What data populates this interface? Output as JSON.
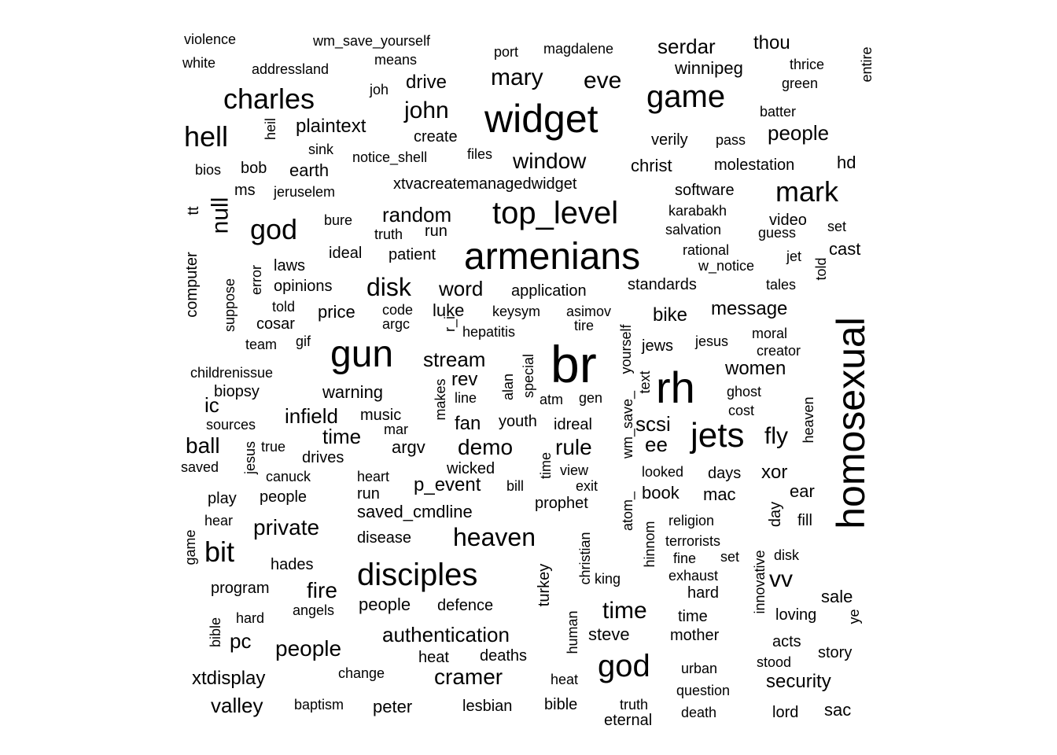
{
  "words": [
    {
      "text": "violence",
      "weight": 18
    },
    {
      "text": "wm_save_yourself",
      "weight": 18
    },
    {
      "text": "port",
      "weight": 18
    },
    {
      "text": "magdalene",
      "weight": 18
    },
    {
      "text": "serdar",
      "weight": 26
    },
    {
      "text": "thou",
      "weight": 24
    },
    {
      "text": "entire",
      "weight": 18
    },
    {
      "text": "white",
      "weight": 18
    },
    {
      "text": "addressland",
      "weight": 18
    },
    {
      "text": "means",
      "weight": 18
    },
    {
      "text": "winnipeg",
      "weight": 22
    },
    {
      "text": "thrice",
      "weight": 18
    },
    {
      "text": "green",
      "weight": 18
    },
    {
      "text": "mary",
      "weight": 30
    },
    {
      "text": "eve",
      "weight": 30
    },
    {
      "text": "charles",
      "weight": 36
    },
    {
      "text": "joh",
      "weight": 18
    },
    {
      "text": "drive",
      "weight": 24
    },
    {
      "text": "game",
      "weight": 40
    },
    {
      "text": "widget",
      "weight": 50
    },
    {
      "text": "batter",
      "weight": 18
    },
    {
      "text": "john",
      "weight": 30
    },
    {
      "text": "hell",
      "weight": 36
    },
    {
      "text": "heil",
      "weight": 18
    },
    {
      "text": "plaintext",
      "weight": 24
    },
    {
      "text": "create",
      "weight": 20
    },
    {
      "text": "verily",
      "weight": 20
    },
    {
      "text": "pass",
      "weight": 18
    },
    {
      "text": "people",
      "weight": 26
    },
    {
      "text": "sink",
      "weight": 18
    },
    {
      "text": "notice_shell",
      "weight": 18
    },
    {
      "text": "files",
      "weight": 18
    },
    {
      "text": "window",
      "weight": 28
    },
    {
      "text": "bios",
      "weight": 18
    },
    {
      "text": "bob",
      "weight": 20
    },
    {
      "text": "earth",
      "weight": 22
    },
    {
      "text": "christ",
      "weight": 22
    },
    {
      "text": "molestation",
      "weight": 20
    },
    {
      "text": "hd",
      "weight": 22
    },
    {
      "text": "null",
      "weight": 30
    },
    {
      "text": "ms",
      "weight": 20
    },
    {
      "text": "jeruselem",
      "weight": 18
    },
    {
      "text": "xtvacreatemanagedwidget",
      "weight": 20
    },
    {
      "text": "software",
      "weight": 20
    },
    {
      "text": "mark",
      "weight": 36
    },
    {
      "text": "computer",
      "weight": 20
    },
    {
      "text": "tt",
      "weight": 20
    },
    {
      "text": "god",
      "weight": 36
    },
    {
      "text": "bure",
      "weight": 18
    },
    {
      "text": "random",
      "weight": 26
    },
    {
      "text": "top_level",
      "weight": 40
    },
    {
      "text": "karabakh",
      "weight": 18
    },
    {
      "text": "video",
      "weight": 20
    },
    {
      "text": "set",
      "weight": 18
    },
    {
      "text": "truth",
      "weight": 18
    },
    {
      "text": "run",
      "weight": 20
    },
    {
      "text": "salvation",
      "weight": 18
    },
    {
      "text": "guess",
      "weight": 18
    },
    {
      "text": "armenians",
      "weight": 48
    },
    {
      "text": "ideal",
      "weight": 20
    },
    {
      "text": "patient",
      "weight": 20
    },
    {
      "text": "rational",
      "weight": 18
    },
    {
      "text": "jet",
      "weight": 18
    },
    {
      "text": "told",
      "weight": 18
    },
    {
      "text": "cast",
      "weight": 22
    },
    {
      "text": "error",
      "weight": 18
    },
    {
      "text": "laws",
      "weight": 20
    },
    {
      "text": "w_notice",
      "weight": 18
    },
    {
      "text": "suppose",
      "weight": 18
    },
    {
      "text": "opinions",
      "weight": 20
    },
    {
      "text": "disk",
      "weight": 32
    },
    {
      "text": "word",
      "weight": 26
    },
    {
      "text": "application",
      "weight": 20
    },
    {
      "text": "standards",
      "weight": 20
    },
    {
      "text": "tales",
      "weight": 18
    },
    {
      "text": "homosexual",
      "weight": 50
    },
    {
      "text": "told",
      "weight": 18
    },
    {
      "text": "code",
      "weight": 18
    },
    {
      "text": "luke",
      "weight": 22
    },
    {
      "text": "keysym",
      "weight": 18
    },
    {
      "text": "asimov",
      "weight": 18
    },
    {
      "text": "message",
      "weight": 24
    },
    {
      "text": "price",
      "weight": 22
    },
    {
      "text": "argc",
      "weight": 18
    },
    {
      "text": "bike",
      "weight": 24
    },
    {
      "text": "cosar",
      "weight": 20
    },
    {
      "text": "r_i",
      "weight": 18
    },
    {
      "text": "hepatitis",
      "weight": 18
    },
    {
      "text": "tire",
      "weight": 18
    },
    {
      "text": "moral",
      "weight": 18
    },
    {
      "text": "team",
      "weight": 18
    },
    {
      "text": "gif",
      "weight": 18
    },
    {
      "text": "gun",
      "weight": 48
    },
    {
      "text": "yourself",
      "weight": 18
    },
    {
      "text": "jews",
      "weight": 20
    },
    {
      "text": "jesus",
      "weight": 18
    },
    {
      "text": "creator",
      "weight": 18
    },
    {
      "text": "br",
      "weight": 66
    },
    {
      "text": "stream",
      "weight": 26
    },
    {
      "text": "special",
      "weight": 18
    },
    {
      "text": "childrenissue",
      "weight": 18
    },
    {
      "text": "rev",
      "weight": 24
    },
    {
      "text": "women",
      "weight": 24
    },
    {
      "text": "rh",
      "weight": 56
    },
    {
      "text": "text",
      "weight": 18
    },
    {
      "text": "biopsy",
      "weight": 20
    },
    {
      "text": "warning",
      "weight": 22
    },
    {
      "text": "line",
      "weight": 18
    },
    {
      "text": "alan",
      "weight": 18
    },
    {
      "text": "atm",
      "weight": 18
    },
    {
      "text": "gen",
      "weight": 18
    },
    {
      "text": "ghost",
      "weight": 18
    },
    {
      "text": "ic",
      "weight": 26
    },
    {
      "text": "makes",
      "weight": 18
    },
    {
      "text": "cost",
      "weight": 18
    },
    {
      "text": "infield",
      "weight": 26
    },
    {
      "text": "music",
      "weight": 20
    },
    {
      "text": "fan",
      "weight": 24
    },
    {
      "text": "youth",
      "weight": 20
    },
    {
      "text": "idreal",
      "weight": 20
    },
    {
      "text": "scsi",
      "weight": 26
    },
    {
      "text": "sources",
      "weight": 18
    },
    {
      "text": "mar",
      "weight": 18
    },
    {
      "text": "jets",
      "weight": 44
    },
    {
      "text": "fly",
      "weight": 30
    },
    {
      "text": "time",
      "weight": 26
    },
    {
      "text": "demo",
      "weight": 28
    },
    {
      "text": "rule",
      "weight": 28
    },
    {
      "text": "heaven",
      "weight": 18
    },
    {
      "text": "ball",
      "weight": 28
    },
    {
      "text": "true",
      "weight": 18
    },
    {
      "text": "argv",
      "weight": 22
    },
    {
      "text": "ee",
      "weight": 26
    },
    {
      "text": "jesus",
      "weight": 18
    },
    {
      "text": "drives",
      "weight": 20
    },
    {
      "text": "time",
      "weight": 18
    },
    {
      "text": "wm_save_",
      "weight": 18
    },
    {
      "text": "saved",
      "weight": 18
    },
    {
      "text": "wicked",
      "weight": 20
    },
    {
      "text": "view",
      "weight": 18
    },
    {
      "text": "looked",
      "weight": 18
    },
    {
      "text": "days",
      "weight": 20
    },
    {
      "text": "xor",
      "weight": 24
    },
    {
      "text": "canuck",
      "weight": 18
    },
    {
      "text": "heart",
      "weight": 18
    },
    {
      "text": "p_event",
      "weight": 24
    },
    {
      "text": "bill",
      "weight": 18
    },
    {
      "text": "exit",
      "weight": 18
    },
    {
      "text": "play",
      "weight": 20
    },
    {
      "text": "people",
      "weight": 20
    },
    {
      "text": "run",
      "weight": 20
    },
    {
      "text": "book",
      "weight": 22
    },
    {
      "text": "mac",
      "weight": 22
    },
    {
      "text": "ear",
      "weight": 22
    },
    {
      "text": "prophet",
      "weight": 20
    },
    {
      "text": "day",
      "weight": 20
    },
    {
      "text": "saved_cmdline",
      "weight": 22
    },
    {
      "text": "atom_",
      "weight": 18
    },
    {
      "text": "fill",
      "weight": 20
    },
    {
      "text": "hear",
      "weight": 18
    },
    {
      "text": "private",
      "weight": 28
    },
    {
      "text": "religion",
      "weight": 18
    },
    {
      "text": "game",
      "weight": 18
    },
    {
      "text": "hinnom",
      "weight": 18
    },
    {
      "text": "christian",
      "weight": 18
    },
    {
      "text": "heaven",
      "weight": 32
    },
    {
      "text": "terrorists",
      "weight": 18
    },
    {
      "text": "disease",
      "weight": 20
    },
    {
      "text": "bit",
      "weight": 36
    },
    {
      "text": "disk",
      "weight": 18
    },
    {
      "text": "fine",
      "weight": 18
    },
    {
      "text": "set",
      "weight": 18
    },
    {
      "text": "innovative",
      "weight": 18
    },
    {
      "text": "hades",
      "weight": 20
    },
    {
      "text": "disciples",
      "weight": 40
    },
    {
      "text": "turkey",
      "weight": 20
    },
    {
      "text": "exhaust",
      "weight": 18
    },
    {
      "text": "king",
      "weight": 18
    },
    {
      "text": "vv",
      "weight": 30
    },
    {
      "text": "program",
      "weight": 20
    },
    {
      "text": "fire",
      "weight": 28
    },
    {
      "text": "hard",
      "weight": 20
    },
    {
      "text": "sale",
      "weight": 22
    },
    {
      "text": "time",
      "weight": 30
    },
    {
      "text": "people",
      "weight": 22
    },
    {
      "text": "defence",
      "weight": 20
    },
    {
      "text": "angels",
      "weight": 18
    },
    {
      "text": "hard",
      "weight": 18
    },
    {
      "text": "time",
      "weight": 20
    },
    {
      "text": "loving",
      "weight": 20
    },
    {
      "text": "ye",
      "weight": 18
    },
    {
      "text": "bible",
      "weight": 18
    },
    {
      "text": "authentication",
      "weight": 26
    },
    {
      "text": "human",
      "weight": 18
    },
    {
      "text": "steve",
      "weight": 22
    },
    {
      "text": "mother",
      "weight": 20
    },
    {
      "text": "pc",
      "weight": 26
    },
    {
      "text": "acts",
      "weight": 20
    },
    {
      "text": "people",
      "weight": 28
    },
    {
      "text": "heat",
      "weight": 20
    },
    {
      "text": "deaths",
      "weight": 20
    },
    {
      "text": "story",
      "weight": 20
    },
    {
      "text": "god",
      "weight": 40
    },
    {
      "text": "stood",
      "weight": 18
    },
    {
      "text": "xtdisplay",
      "weight": 24
    },
    {
      "text": "change",
      "weight": 18
    },
    {
      "text": "cramer",
      "weight": 28
    },
    {
      "text": "urban",
      "weight": 18
    },
    {
      "text": "heat",
      "weight": 18
    },
    {
      "text": "security",
      "weight": 24
    },
    {
      "text": "question",
      "weight": 18
    },
    {
      "text": "valley",
      "weight": 26
    },
    {
      "text": "baptism",
      "weight": 18
    },
    {
      "text": "peter",
      "weight": 22
    },
    {
      "text": "lesbian",
      "weight": 20
    },
    {
      "text": "bible",
      "weight": 20
    },
    {
      "text": "truth",
      "weight": 18
    },
    {
      "text": "lord",
      "weight": 20
    },
    {
      "text": "sac",
      "weight": 22
    },
    {
      "text": "death",
      "weight": 18
    },
    {
      "text": "eternal",
      "weight": 20
    }
  ]
}
